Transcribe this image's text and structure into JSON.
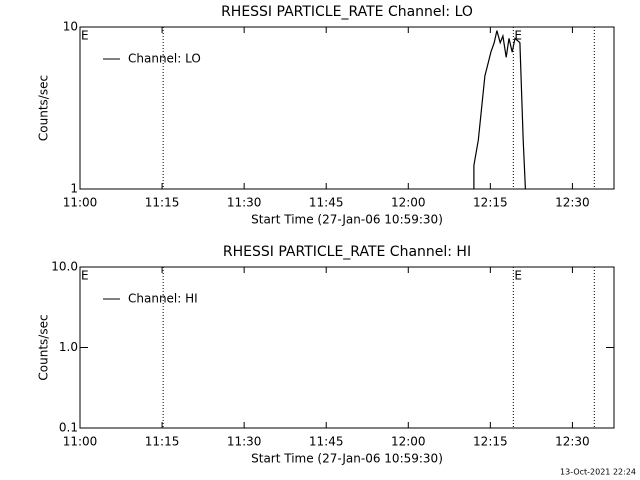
{
  "chart_data": [
    {
      "type": "line",
      "title": "RHESSI PARTICLE_RATE Channel: LO",
      "xlabel": "Start Time (27-Jan-06 10:59:30)",
      "ylabel": "Counts/sec",
      "x": [
        72.0,
        72.0,
        72.8,
        74.0,
        74.6,
        75.1,
        75.7,
        76.2,
        76.8,
        77.3,
        77.9,
        78.4,
        79.0,
        79.5,
        80.4,
        81.0,
        81.4
      ],
      "series": [
        {
          "name": "Channel: LO",
          "color": "#000000",
          "values": [
            1,
            1.4,
            2,
            5,
            6,
            7,
            8,
            9.5,
            8,
            8.8,
            6.5,
            8.5,
            7,
            8.5,
            8,
            2,
            1
          ]
        }
      ],
      "xlim": [
        0,
        97.6
      ],
      "xticks": [
        {
          "value": 0,
          "label": "11:00"
        },
        {
          "value": 15,
          "label": "11:15"
        },
        {
          "value": 30,
          "label": "11:30"
        },
        {
          "value": 45,
          "label": "11:45"
        },
        {
          "value": 60,
          "label": "12:00"
        },
        {
          "value": 75,
          "label": "12:15"
        },
        {
          "value": 90,
          "label": "12:30"
        }
      ],
      "ylim": [
        1,
        10
      ],
      "yticks": [
        1,
        10
      ],
      "ylog": true,
      "legend": "upper left",
      "vlines": [
        15.2,
        79.2,
        94.0
      ],
      "annotations": [
        {
          "text": "E",
          "x": 0
        },
        {
          "text": "E",
          "x": 79.2
        }
      ]
    },
    {
      "type": "line",
      "title": "RHESSI PARTICLE_RATE Channel: HI",
      "xlabel": "Start Time (27-Jan-06 10:59:30)",
      "ylabel": "Counts/sec",
      "x": [],
      "series": [
        {
          "name": "Channel: HI",
          "color": "#000000",
          "values": []
        }
      ],
      "xlim": [
        0,
        97.6
      ],
      "xticks": [
        {
          "value": 0,
          "label": "11:00"
        },
        {
          "value": 15,
          "label": "11:15"
        },
        {
          "value": 30,
          "label": "11:30"
        },
        {
          "value": 45,
          "label": "11:45"
        },
        {
          "value": 60,
          "label": "12:00"
        },
        {
          "value": 75,
          "label": "12:15"
        },
        {
          "value": 90,
          "label": "12:30"
        }
      ],
      "ylim": [
        0.1,
        10
      ],
      "yticks": [
        {
          "value": 0.1,
          "label": "0.1"
        },
        {
          "value": 1,
          "label": "1.0"
        },
        {
          "value": 10,
          "label": "10.0"
        }
      ],
      "ylog": true,
      "legend": "upper left",
      "vlines": [
        15.2,
        79.2,
        94.0
      ],
      "annotations": [
        {
          "text": "E",
          "x": 0
        },
        {
          "text": "E",
          "x": 79.2
        }
      ]
    }
  ],
  "footer": "13-Oct-2021 22:24"
}
